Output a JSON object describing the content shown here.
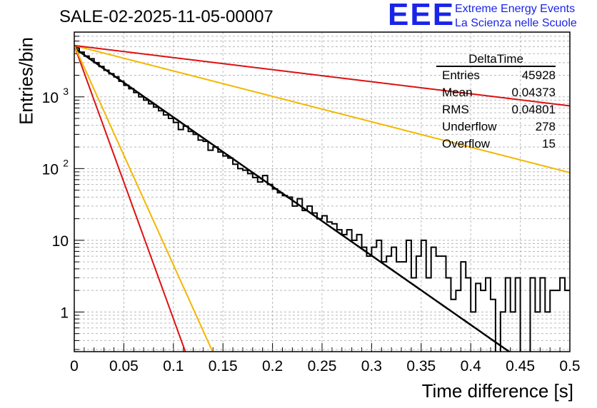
{
  "title": "SALE-02-2025-11-05-00007",
  "logo": {
    "mark": "EEE",
    "line1": "Extreme Energy Events",
    "line2": "La Scienza nelle Scuole",
    "color": "#1a24e8"
  },
  "stats": {
    "name": "DeltaTime",
    "rows": [
      {
        "label": "Entries",
        "value": "45928"
      },
      {
        "label": "Mean",
        "value": "0.04373"
      },
      {
        "label": "RMS",
        "value": "0.04801"
      },
      {
        "label": "Underflow",
        "value": "278"
      },
      {
        "label": "Overflow",
        "value": "15"
      }
    ]
  },
  "chart_data": {
    "type": "line",
    "title": "SALE-02-2025-11-05-00007",
    "xlabel": "Time difference [s]",
    "ylabel": "Entries/bin",
    "xlim": [
      0,
      0.5
    ],
    "ylim_log": [
      0.28,
      8000
    ],
    "yscale": "log",
    "grid": true,
    "x_ticks": [
      "0",
      "0.05",
      "0.1",
      "0.15",
      "0.2",
      "0.25",
      "0.3",
      "0.35",
      "0.4",
      "0.45",
      "0.5"
    ],
    "y_ticks": [
      {
        "value": 1,
        "label": "1"
      },
      {
        "value": 10,
        "label": "10"
      },
      {
        "value": 100,
        "label": "10",
        "exp": "2"
      },
      {
        "value": 1000,
        "label": "10",
        "exp": "3"
      }
    ],
    "histogram": {
      "name": "DeltaTime",
      "bin_width": 0.005,
      "color": "#000000",
      "counts": [
        4800,
        4200,
        3700,
        3400,
        3000,
        2650,
        2350,
        2100,
        1900,
        1650,
        1450,
        1300,
        1150,
        1000,
        900,
        800,
        720,
        640,
        560,
        500,
        440,
        350,
        390,
        330,
        300,
        250,
        240,
        180,
        200,
        170,
        150,
        140,
        115,
        100,
        95,
        85,
        75,
        65,
        80,
        60,
        52,
        46,
        42,
        40,
        30,
        38,
        26,
        30,
        24,
        20,
        22,
        18,
        17,
        14,
        12,
        14,
        10,
        12,
        8,
        6,
        8,
        10,
        5,
        6,
        8,
        5,
        5,
        10,
        3,
        6,
        10,
        3,
        8,
        6,
        6,
        3,
        1.5,
        2,
        5,
        3,
        1,
        2.5,
        2,
        3,
        1.5,
        0.2,
        1,
        3,
        1,
        3,
        0.2,
        0.2,
        3,
        1,
        3,
        1,
        2,
        2,
        3,
        2
      ]
    },
    "series": [
      {
        "name": "fit",
        "color": "#000000",
        "formula": "exp",
        "y0": 4800,
        "tau": 0.045
      },
      {
        "name": "red-steep",
        "color": "#dd1111",
        "formula": "exp",
        "y0": 5200,
        "tau": 0.0114
      },
      {
        "name": "orange-steep",
        "color": "#f2b800",
        "formula": "exp",
        "y0": 5200,
        "tau": 0.0142
      },
      {
        "name": "orange-flat",
        "color": "#f2b800",
        "formula": "exp",
        "y0": 5200,
        "tau": 0.1225
      },
      {
        "name": "red-flat",
        "color": "#dd1111",
        "formula": "exp",
        "y0": 5200,
        "tau": 0.258
      }
    ]
  }
}
